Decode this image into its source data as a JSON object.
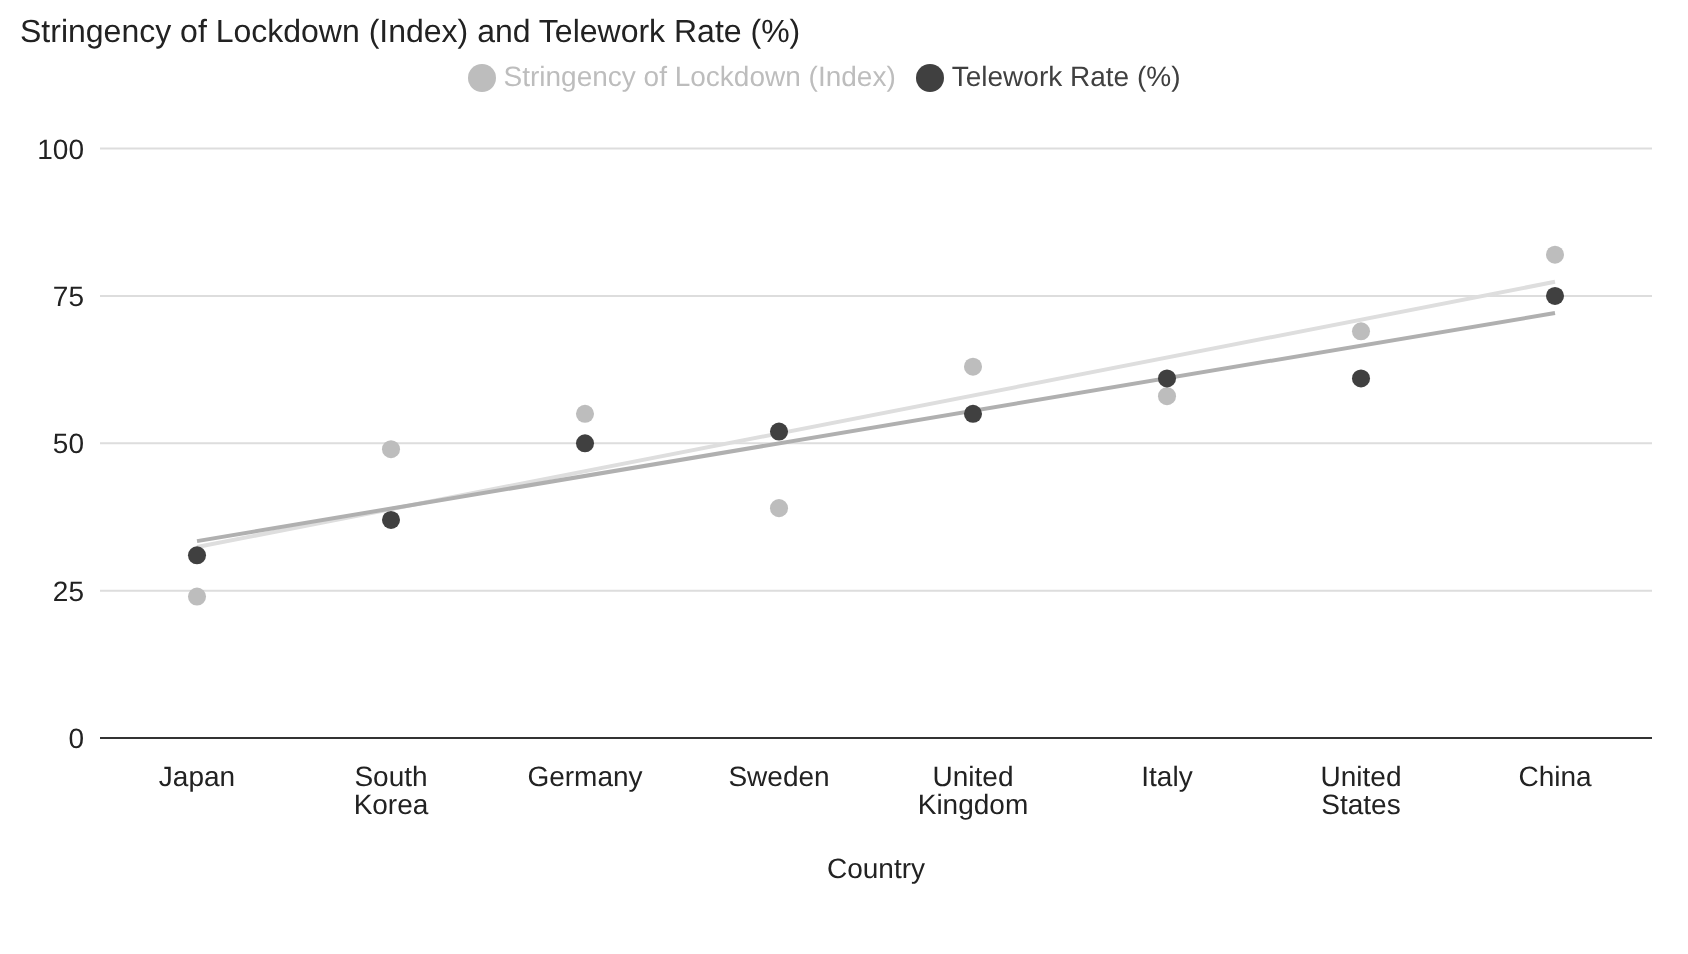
{
  "chart_data": {
    "type": "scatter",
    "title": "Stringency of Lockdown (Index) and Telework Rate (%)",
    "xlabel": "Country",
    "categories": [
      "Japan",
      "South Korea",
      "Germany",
      "Sweden",
      "United Kingdom",
      "Italy",
      "United States",
      "China"
    ],
    "series": [
      {
        "name": "Stringency of Lockdown (Index)",
        "color": "#bdbdbd",
        "values": [
          24,
          49,
          55,
          39,
          63,
          58,
          69,
          82
        ]
      },
      {
        "name": "Telework Rate (%)",
        "color": "#404040",
        "values": [
          31,
          37,
          50,
          52,
          55,
          61,
          61,
          75
        ]
      },
      {
        "type": "line",
        "marker": "none",
        "color": "#dedede",
        "x": [
          "Japan",
          "China"
        ],
        "values": [
          32.4,
          77.4
        ]
      },
      {
        "type": "line",
        "marker": "none",
        "color": "#b0b0b0",
        "x": [
          "Japan",
          "China"
        ],
        "values": [
          33.4,
          72.1
        ]
      }
    ],
    "ylim": [
      0,
      100
    ],
    "yticks": [
      0,
      25,
      50,
      75,
      100
    ],
    "grid": "y",
    "legend": "top",
    "marker": "circle"
  }
}
